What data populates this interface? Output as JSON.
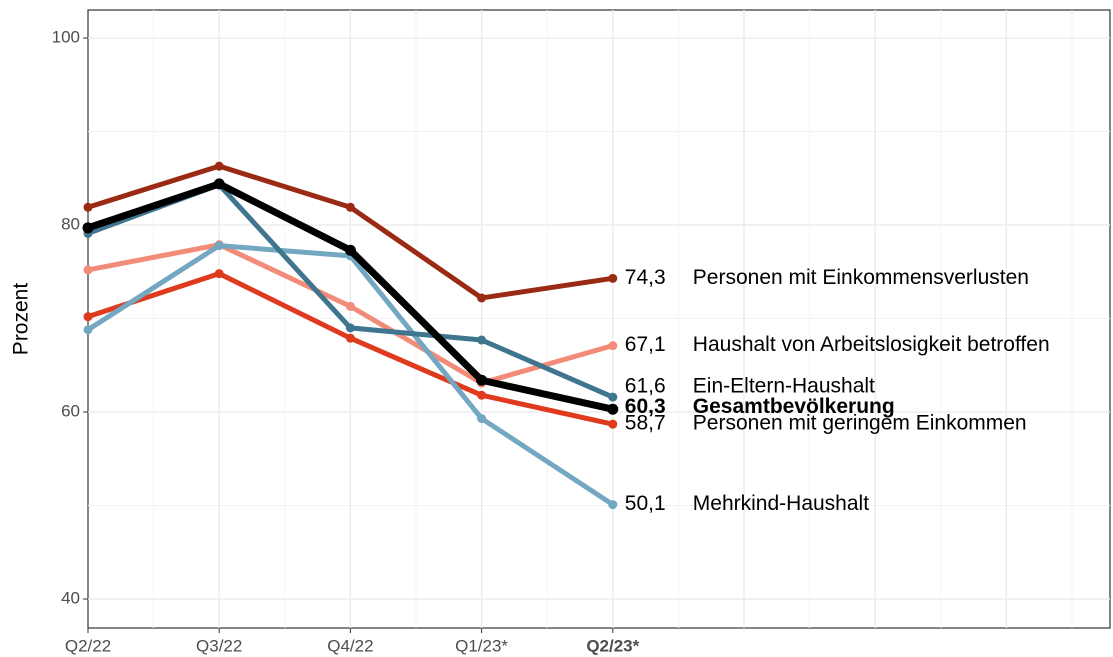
{
  "chart_data": {
    "type": "line",
    "y_label": "Prozent",
    "categories": [
      "Q2/22",
      "Q3/22",
      "Q4/22",
      "Q1/23*",
      "Q2/23*"
    ],
    "ylim": [
      36.9,
      103
    ],
    "yticks": [
      40,
      60,
      80,
      100
    ],
    "grid": true,
    "series": [
      {
        "name": "Personen mit Einkommensverlusten",
        "color": "#9b2a14",
        "values": [
          81.9,
          86.3,
          81.9,
          72.2,
          74.3
        ],
        "value_labels": [
          null,
          null,
          null,
          null,
          "74,3"
        ]
      },
      {
        "name": "Haushalt von Arbeitslosigkeit betroffen",
        "color": "#f28b78",
        "values": [
          75.2,
          77.9,
          71.3,
          63.1,
          67.1
        ],
        "value_labels": [
          null,
          null,
          null,
          null,
          "67,1"
        ]
      },
      {
        "name": "Personen mit geringem Einkommen",
        "color": "#df3a1e",
        "values": [
          70.2,
          74.8,
          67.9,
          61.8,
          58.7
        ],
        "value_labels": [
          null,
          null,
          null,
          null,
          "58,7"
        ]
      },
      {
        "name": "Mehrkind-Haushalt",
        "color": "#74a7c1",
        "values": [
          68.8,
          77.8,
          76.7,
          59.3,
          50.1
        ],
        "value_labels": [
          null,
          null,
          null,
          null,
          "50,1"
        ]
      },
      {
        "name": "Ein-Eltern-Haushalt",
        "color": "#407590",
        "values": [
          79.1,
          84.3,
          69.0,
          67.7,
          61.6
        ],
        "value_labels": [
          null,
          null,
          null,
          null,
          "61,6"
        ]
      },
      {
        "name": "Gesamtbevölkerung",
        "color": "#000000",
        "values": [
          79.7,
          84.4,
          77.3,
          63.4,
          60.3
        ],
        "value_labels": [
          null,
          null,
          null,
          null,
          "60,3"
        ]
      }
    ]
  }
}
